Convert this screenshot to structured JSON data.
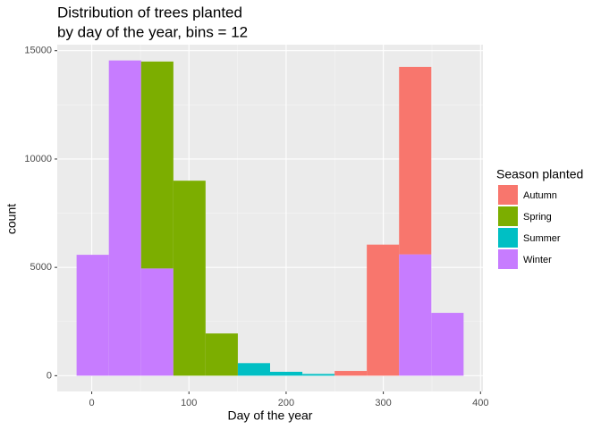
{
  "chart_data": {
    "type": "histogram",
    "title": [
      "Distribution of trees planted",
      "by day of the year, bins = 12"
    ],
    "x_label": "Day of the year",
    "y_label": "count",
    "legend_title": "Season planted",
    "legend": "right",
    "bins": [
      -15.6,
      17.6,
      50.8,
      84.0,
      117.1,
      150.3,
      183.5,
      216.7,
      249.9,
      283.0,
      316.2,
      349.4,
      382.6
    ],
    "series": [
      {
        "name": "Autumn",
        "color": "#f8766d",
        "values": [
          0,
          0,
          0,
          0,
          0,
          0,
          0,
          0,
          220,
          6050,
          8650,
          0
        ]
      },
      {
        "name": "Spring",
        "color": "#7cae00",
        "values": [
          0,
          0,
          9550,
          9000,
          1950,
          0,
          0,
          0,
          0,
          0,
          0,
          0
        ]
      },
      {
        "name": "Summer",
        "color": "#00bfc4",
        "values": [
          0,
          0,
          0,
          0,
          0,
          580,
          180,
          80,
          0,
          0,
          0,
          0
        ]
      },
      {
        "name": "Winter",
        "color": "#c77cff",
        "values": [
          5580,
          14550,
          4950,
          0,
          0,
          0,
          0,
          0,
          0,
          0,
          5600,
          2900
        ]
      }
    ],
    "xlim": [
      -35.5,
      402.5
    ],
    "ylim": [
      -727.5,
      15277.5
    ],
    "xticks": [
      0,
      100,
      200,
      300,
      400
    ],
    "yticks": [
      0,
      5000,
      10000,
      15000
    ],
    "grid": true
  }
}
